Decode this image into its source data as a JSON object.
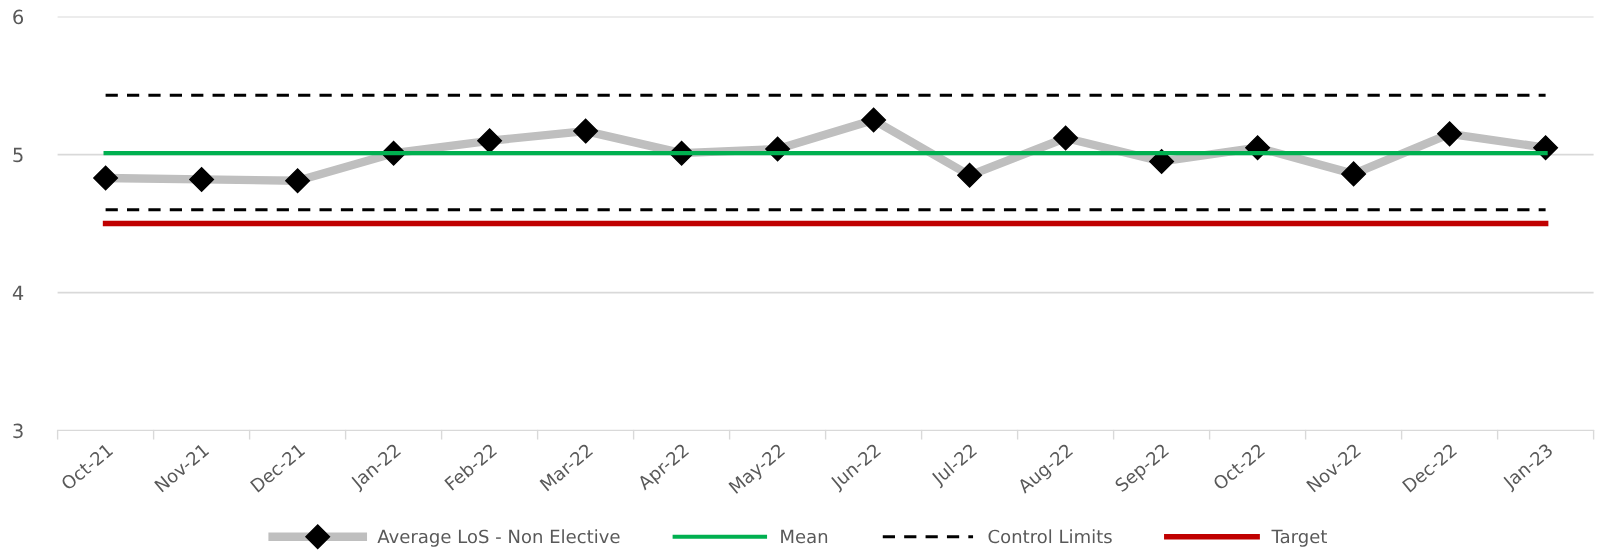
{
  "chart_data": {
    "type": "line",
    "categories": [
      "Oct-21",
      "Nov-21",
      "Dec-21",
      "Jan-22",
      "Feb-22",
      "Mar-22",
      "Apr-22",
      "May-22",
      "Jun-22",
      "Jul-22",
      "Aug-22",
      "Sep-22",
      "Oct-22",
      "Nov-22",
      "Dec-22",
      "Jan-23"
    ],
    "series": [
      {
        "name": "Average LoS - Non Elective",
        "color": "#bfbfbf",
        "marker": "diamond",
        "line_style": "solid",
        "values": [
          4.83,
          4.82,
          4.81,
          5.01,
          5.1,
          5.17,
          5.01,
          5.04,
          5.25,
          4.85,
          5.12,
          4.95,
          5.05,
          4.86,
          5.15,
          5.05
        ]
      },
      {
        "name": "Mean",
        "color": "#00b050",
        "marker": "none",
        "line_style": "solid",
        "values": [
          5.01,
          5.01,
          5.01,
          5.01,
          5.01,
          5.01,
          5.01,
          5.01,
          5.01,
          5.01,
          5.01,
          5.01,
          5.01,
          5.01,
          5.01,
          5.01
        ]
      },
      {
        "name": "Control Limits",
        "color": "#000000",
        "marker": "none",
        "line_style": "dashed",
        "values": [
          5.43,
          5.43,
          5.43,
          5.43,
          5.43,
          5.43,
          5.43,
          5.43,
          5.43,
          5.43,
          5.43,
          5.43,
          5.43,
          5.43,
          5.43,
          5.43
        ]
      },
      {
        "color": "#000000",
        "marker": "none",
        "line_style": "dashed",
        "values": [
          4.6,
          4.6,
          4.6,
          4.6,
          4.6,
          4.6,
          4.6,
          4.6,
          4.6,
          4.6,
          4.6,
          4.6,
          4.6,
          4.6,
          4.6,
          4.6
        ]
      },
      {
        "name": "Target",
        "color": "#c00000",
        "marker": "none",
        "line_style": "solid",
        "values": [
          4.5,
          4.5,
          4.5,
          4.5,
          4.5,
          4.5,
          4.5,
          4.5,
          4.5,
          4.5,
          4.5,
          4.5,
          4.5,
          4.5,
          4.5,
          4.5
        ]
      }
    ],
    "ylim": [
      3,
      6
    ],
    "yticks": [
      3,
      4,
      5,
      6
    ],
    "grid": "y",
    "legend": "bottom"
  }
}
